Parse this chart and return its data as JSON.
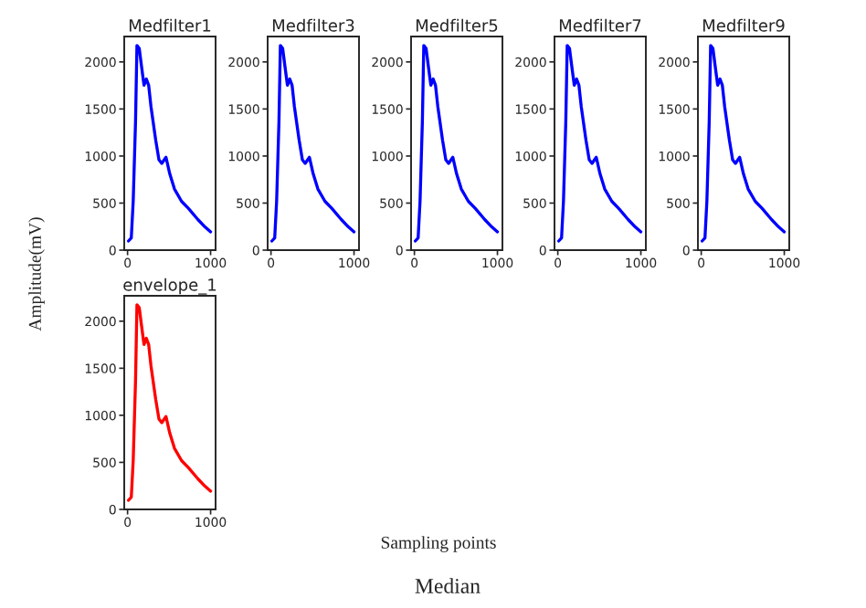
{
  "chart_data": [
    {
      "type": "line",
      "title": "Medfilter1",
      "xlim": [
        -40,
        1060
      ],
      "ylim": [
        0,
        2270
      ],
      "xticks": [
        0,
        1000
      ],
      "yticks": [
        0,
        500,
        1000,
        1500,
        2000
      ],
      "grid": false,
      "series": [
        {
          "color": "#0000ff",
          "x": [
            11,
            45,
            68,
            96,
            113,
            141,
            169,
            198,
            226,
            254,
            282,
            339,
            378,
            412,
            463,
            508,
            565,
            650,
            734,
            847,
            932,
            1000
          ],
          "values": [
            97,
            130,
            519,
            1364,
            2175,
            2143,
            1948,
            1753,
            1818,
            1753,
            1526,
            1169,
            961,
            922,
            987,
            812,
            649,
            519,
            442,
            325,
            247,
            195
          ]
        }
      ]
    },
    {
      "type": "line",
      "title": "Medfilter3",
      "xlim": [
        -40,
        1060
      ],
      "ylim": [
        0,
        2270
      ],
      "xticks": [
        0,
        1000
      ],
      "yticks": [
        0,
        500,
        1000,
        1500,
        2000
      ],
      "grid": false,
      "series": [
        {
          "color": "#0000ff",
          "x": [
            11,
            45,
            68,
            96,
            113,
            141,
            169,
            198,
            226,
            254,
            282,
            339,
            378,
            412,
            463,
            508,
            565,
            650,
            734,
            847,
            932,
            1000
          ],
          "values": [
            97,
            130,
            519,
            1364,
            2175,
            2143,
            1948,
            1753,
            1818,
            1753,
            1526,
            1169,
            961,
            922,
            987,
            812,
            649,
            519,
            442,
            325,
            247,
            195
          ]
        }
      ]
    },
    {
      "type": "line",
      "title": "Medfilter5",
      "xlim": [
        -40,
        1060
      ],
      "ylim": [
        0,
        2270
      ],
      "xticks": [
        0,
        1000
      ],
      "yticks": [
        0,
        500,
        1000,
        1500,
        2000
      ],
      "grid": false,
      "series": [
        {
          "color": "#0000ff",
          "x": [
            11,
            45,
            68,
            96,
            113,
            141,
            169,
            198,
            226,
            254,
            282,
            339,
            378,
            412,
            463,
            508,
            565,
            650,
            734,
            847,
            932,
            1000
          ],
          "values": [
            97,
            130,
            519,
            1364,
            2175,
            2143,
            1948,
            1753,
            1818,
            1753,
            1526,
            1169,
            961,
            922,
            987,
            812,
            649,
            519,
            442,
            325,
            247,
            195
          ]
        }
      ]
    },
    {
      "type": "line",
      "title": "Medfilter7",
      "xlim": [
        -40,
        1060
      ],
      "ylim": [
        0,
        2270
      ],
      "xticks": [
        0,
        1000
      ],
      "yticks": [
        0,
        500,
        1000,
        1500,
        2000
      ],
      "grid": false,
      "series": [
        {
          "color": "#0000ff",
          "x": [
            11,
            45,
            68,
            96,
            113,
            141,
            169,
            198,
            226,
            254,
            282,
            339,
            378,
            412,
            463,
            508,
            565,
            650,
            734,
            847,
            932,
            1000
          ],
          "values": [
            97,
            130,
            519,
            1364,
            2175,
            2143,
            1948,
            1753,
            1818,
            1753,
            1526,
            1169,
            961,
            922,
            987,
            812,
            649,
            519,
            442,
            325,
            247,
            195
          ]
        }
      ]
    },
    {
      "type": "line",
      "title": "Medfilter9",
      "xlim": [
        -40,
        1060
      ],
      "ylim": [
        0,
        2270
      ],
      "xticks": [
        0,
        1000
      ],
      "yticks": [
        0,
        500,
        1000,
        1500,
        2000
      ],
      "grid": false,
      "series": [
        {
          "color": "#0000ff",
          "x": [
            11,
            45,
            68,
            96,
            113,
            141,
            169,
            198,
            226,
            254,
            282,
            339,
            378,
            412,
            463,
            508,
            565,
            650,
            734,
            847,
            932,
            1000
          ],
          "values": [
            97,
            130,
            519,
            1364,
            2175,
            2143,
            1948,
            1753,
            1818,
            1753,
            1526,
            1169,
            961,
            922,
            987,
            812,
            649,
            519,
            442,
            325,
            247,
            195
          ]
        }
      ]
    },
    {
      "type": "line",
      "title": "envelope_1",
      "xlim": [
        -40,
        1060
      ],
      "ylim": [
        0,
        2270
      ],
      "xticks": [
        0,
        1000
      ],
      "yticks": [
        0,
        500,
        1000,
        1500,
        2000
      ],
      "grid": false,
      "series": [
        {
          "color": "#ff0000",
          "x": [
            11,
            45,
            68,
            96,
            113,
            141,
            169,
            198,
            226,
            254,
            282,
            339,
            378,
            412,
            463,
            508,
            565,
            650,
            734,
            847,
            932,
            1000
          ],
          "values": [
            97,
            130,
            519,
            1364,
            2175,
            2143,
            1948,
            1753,
            1818,
            1753,
            1526,
            1169,
            961,
            922,
            987,
            812,
            649,
            519,
            442,
            325,
            247,
            195
          ]
        }
      ]
    },
    {
      "type": "other",
      "ylabel": "Amplitude(mV)",
      "xlabel": "Sampling points",
      "annotations": [
        "Median"
      ]
    }
  ]
}
